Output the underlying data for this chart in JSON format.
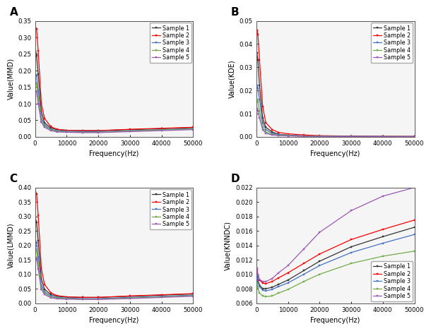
{
  "colors": {
    "sample1": "#333333",
    "sample2": "#FF0000",
    "sample3": "#4472C4",
    "sample4": "#70AD47",
    "sample5": "#9B59B6"
  },
  "freq_points_ABC": [
    200,
    500,
    1000,
    2000,
    3000,
    5000,
    7000,
    10000,
    15000,
    20000,
    30000,
    40000,
    50000
  ],
  "freq_points_D": [
    200,
    500,
    1000,
    2000,
    3000,
    5000,
    7000,
    10000,
    15000,
    20000,
    30000,
    40000,
    50000
  ],
  "panel_A": {
    "label": "A",
    "ylabel": "Value(MMD)",
    "xlabel": "Frequency(Hz)",
    "ylim": [
      0,
      0.35
    ],
    "yticks": [
      0.0,
      0.05,
      0.1,
      0.15,
      0.2,
      0.25,
      0.3,
      0.35
    ],
    "xticks": [
      0,
      10000,
      20000,
      30000,
      40000,
      50000
    ],
    "data": {
      "sample1": [
        0.26,
        0.245,
        0.19,
        0.075,
        0.042,
        0.026,
        0.021,
        0.019,
        0.018,
        0.018,
        0.021,
        0.024,
        0.027
      ],
      "sample2": [
        0.33,
        0.325,
        0.26,
        0.1,
        0.055,
        0.03,
        0.022,
        0.019,
        0.018,
        0.018,
        0.022,
        0.025,
        0.028
      ],
      "sample3": [
        0.19,
        0.185,
        0.14,
        0.058,
        0.036,
        0.022,
        0.018,
        0.016,
        0.015,
        0.015,
        0.018,
        0.021,
        0.024
      ],
      "sample4": [
        0.165,
        0.16,
        0.12,
        0.05,
        0.032,
        0.02,
        0.016,
        0.014,
        0.013,
        0.013,
        0.017,
        0.02,
        0.023
      ],
      "sample5": [
        0.14,
        0.135,
        0.1,
        0.044,
        0.028,
        0.018,
        0.014,
        0.013,
        0.012,
        0.012,
        0.015,
        0.018,
        0.021
      ]
    }
  },
  "panel_B": {
    "label": "B",
    "ylabel": "Value(KDE)",
    "xlabel": "Frequency(Hz)",
    "ylim": [
      0,
      0.05
    ],
    "yticks": [
      0.0,
      0.01,
      0.02,
      0.03,
      0.04,
      0.05
    ],
    "xticks": [
      0,
      10000,
      20000,
      30000,
      40000,
      50000
    ],
    "data": {
      "sample1": [
        0.036,
        0.033,
        0.022,
        0.008,
        0.004,
        0.002,
        0.001,
        0.0006,
        0.0003,
        0.0002,
        0.0001,
        5e-05,
        3e-05
      ],
      "sample2": [
        0.046,
        0.044,
        0.033,
        0.013,
        0.006,
        0.003,
        0.0018,
        0.0012,
        0.0007,
        0.0004,
        0.0002,
        0.0001,
        5e-05
      ],
      "sample3": [
        0.022,
        0.021,
        0.016,
        0.006,
        0.003,
        0.0014,
        0.0009,
        0.0006,
        0.0003,
        0.0002,
        0.0001,
        4e-05,
        2e-05
      ],
      "sample4": [
        0.016,
        0.015,
        0.011,
        0.004,
        0.002,
        0.001,
        0.0006,
        0.0004,
        0.0002,
        0.0001,
        5e-05,
        2e-05,
        1e-05
      ],
      "sample5": [
        0.012,
        0.011,
        0.008,
        0.003,
        0.0014,
        0.0007,
        0.0004,
        0.0003,
        0.0001,
        7e-05,
        3e-05,
        1e-05,
        5e-06
      ]
    }
  },
  "panel_C": {
    "label": "C",
    "ylabel": "Value(LMMD)",
    "xlabel": "Frequency(Hz)",
    "ylim": [
      0,
      0.4
    ],
    "yticks": [
      0.0,
      0.05,
      0.1,
      0.15,
      0.2,
      0.25,
      0.3,
      0.35,
      0.4
    ],
    "xticks": [
      0,
      10000,
      20000,
      30000,
      40000,
      50000
    ],
    "data": {
      "sample1": [
        0.29,
        0.28,
        0.215,
        0.085,
        0.048,
        0.03,
        0.024,
        0.021,
        0.02,
        0.02,
        0.024,
        0.028,
        0.032
      ],
      "sample2": [
        0.385,
        0.378,
        0.305,
        0.12,
        0.065,
        0.036,
        0.026,
        0.022,
        0.02,
        0.02,
        0.025,
        0.029,
        0.033
      ],
      "sample3": [
        0.215,
        0.208,
        0.16,
        0.065,
        0.04,
        0.025,
        0.02,
        0.018,
        0.016,
        0.016,
        0.02,
        0.024,
        0.028
      ],
      "sample4": [
        0.19,
        0.183,
        0.14,
        0.055,
        0.035,
        0.022,
        0.018,
        0.016,
        0.014,
        0.014,
        0.018,
        0.022,
        0.026
      ],
      "sample5": [
        0.16,
        0.155,
        0.118,
        0.048,
        0.03,
        0.019,
        0.015,
        0.014,
        0.013,
        0.013,
        0.016,
        0.02,
        0.024
      ]
    }
  },
  "panel_D": {
    "label": "D",
    "ylabel": "Value(KNNDC)",
    "xlabel": "Frequency(Hz)",
    "ylim": [
      0.006,
      0.022
    ],
    "yticks": [
      0.006,
      0.008,
      0.01,
      0.012,
      0.014,
      0.016,
      0.018,
      0.02,
      0.022
    ],
    "xticks": [
      0,
      10000,
      20000,
      30000,
      40000,
      50000
    ],
    "data": {
      "sample1": [
        0.01,
        0.0092,
        0.0085,
        0.008,
        0.008,
        0.0082,
        0.0086,
        0.0092,
        0.0105,
        0.0118,
        0.0138,
        0.0152,
        0.0165
      ],
      "sample2": [
        0.0105,
        0.0098,
        0.0092,
        0.0088,
        0.0087,
        0.009,
        0.0095,
        0.0102,
        0.0115,
        0.0128,
        0.0148,
        0.0162,
        0.0175
      ],
      "sample3": [
        0.0098,
        0.009,
        0.0083,
        0.0078,
        0.0077,
        0.0079,
        0.0083,
        0.0088,
        0.01,
        0.0112,
        0.013,
        0.0143,
        0.0155
      ],
      "sample4": [
        0.0088,
        0.008,
        0.0074,
        0.007,
        0.0069,
        0.007,
        0.0074,
        0.0079,
        0.009,
        0.01,
        0.0115,
        0.0125,
        0.0132
      ],
      "sample5": [
        0.0108,
        0.01,
        0.0093,
        0.009,
        0.009,
        0.0094,
        0.0102,
        0.0112,
        0.0135,
        0.0158,
        0.0188,
        0.0208,
        0.022
      ]
    }
  },
  "samples": [
    "sample1",
    "sample2",
    "sample3",
    "sample4",
    "sample5"
  ],
  "sample_labels": [
    "Sample 1",
    "Sample 2",
    "Sample 3",
    "Sample 4",
    "Sample 5"
  ],
  "background_color": "#f0f0f0"
}
